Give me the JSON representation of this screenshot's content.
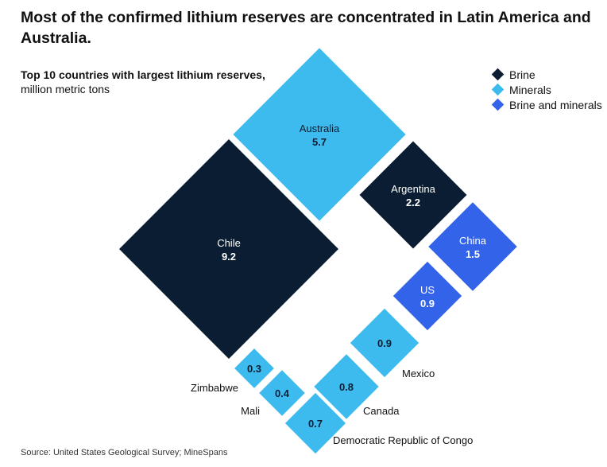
{
  "title": "Most of the confirmed lithium reserves are concentrated in Latin America and Australia.",
  "subtitle_bold": "Top 10 countries with largest lithium reserves,",
  "subtitle_unit": "million metric tons",
  "source": "Source: United States Geological Survey; MineSpans",
  "legend": [
    {
      "label": "Brine",
      "color": "#0b1d33"
    },
    {
      "label": "Minerals",
      "color": "#3dbbee"
    },
    {
      "label": "Brine and minerals",
      "color": "#3263e8"
    }
  ],
  "chart_data": {
    "type": "diamond-area",
    "unit": "million metric tons",
    "items": [
      {
        "country": "Chile",
        "value": 9.2,
        "type": "Brine",
        "value_label": "9.2"
      },
      {
        "country": "Australia",
        "value": 5.7,
        "type": "Minerals",
        "value_label": "5.7"
      },
      {
        "country": "Argentina",
        "value": 2.2,
        "type": "Brine",
        "value_label": "2.2"
      },
      {
        "country": "China",
        "value": 1.5,
        "type": "Brine and minerals",
        "value_label": "1.5"
      },
      {
        "country": "US",
        "value": 0.9,
        "type": "Brine and minerals",
        "value_label": "0.9"
      },
      {
        "country": "Mexico",
        "value": 0.9,
        "type": "Minerals",
        "value_label": "0.9"
      },
      {
        "country": "Canada",
        "value": 0.8,
        "type": "Minerals",
        "value_label": "0.8"
      },
      {
        "country": "Democratic Republic of Congo",
        "value": 0.7,
        "type": "Minerals",
        "value_label": "0.7"
      },
      {
        "country": "Mali",
        "value": 0.4,
        "type": "Minerals",
        "value_label": "0.4"
      },
      {
        "country": "Zimbabwe",
        "value": 0.3,
        "type": "Minerals",
        "value_label": "0.3"
      }
    ]
  }
}
